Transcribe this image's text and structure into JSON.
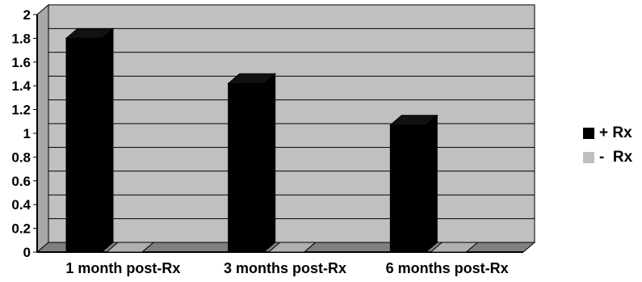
{
  "chart_data": {
    "type": "bar",
    "categories": [
      "1 month post-Rx",
      "3 months post-Rx",
      "6 months post-Rx"
    ],
    "series": [
      {
        "name": "+ Rx",
        "values": [
          1.8,
          1.42,
          1.07
        ],
        "color": "#000000"
      },
      {
        "name": "-  Rx",
        "values": [
          0,
          0,
          0
        ],
        "color": "#c0c0c0"
      }
    ],
    "ylim": [
      0,
      2
    ],
    "yticks": [
      "0",
      "0.2",
      "0.4",
      "0.6",
      "0.8",
      "1",
      "1.2",
      "1.4",
      "1.6",
      "1.8",
      "2"
    ],
    "grid": true,
    "legend_position": "right",
    "plot_background": "#c0c0c0"
  }
}
